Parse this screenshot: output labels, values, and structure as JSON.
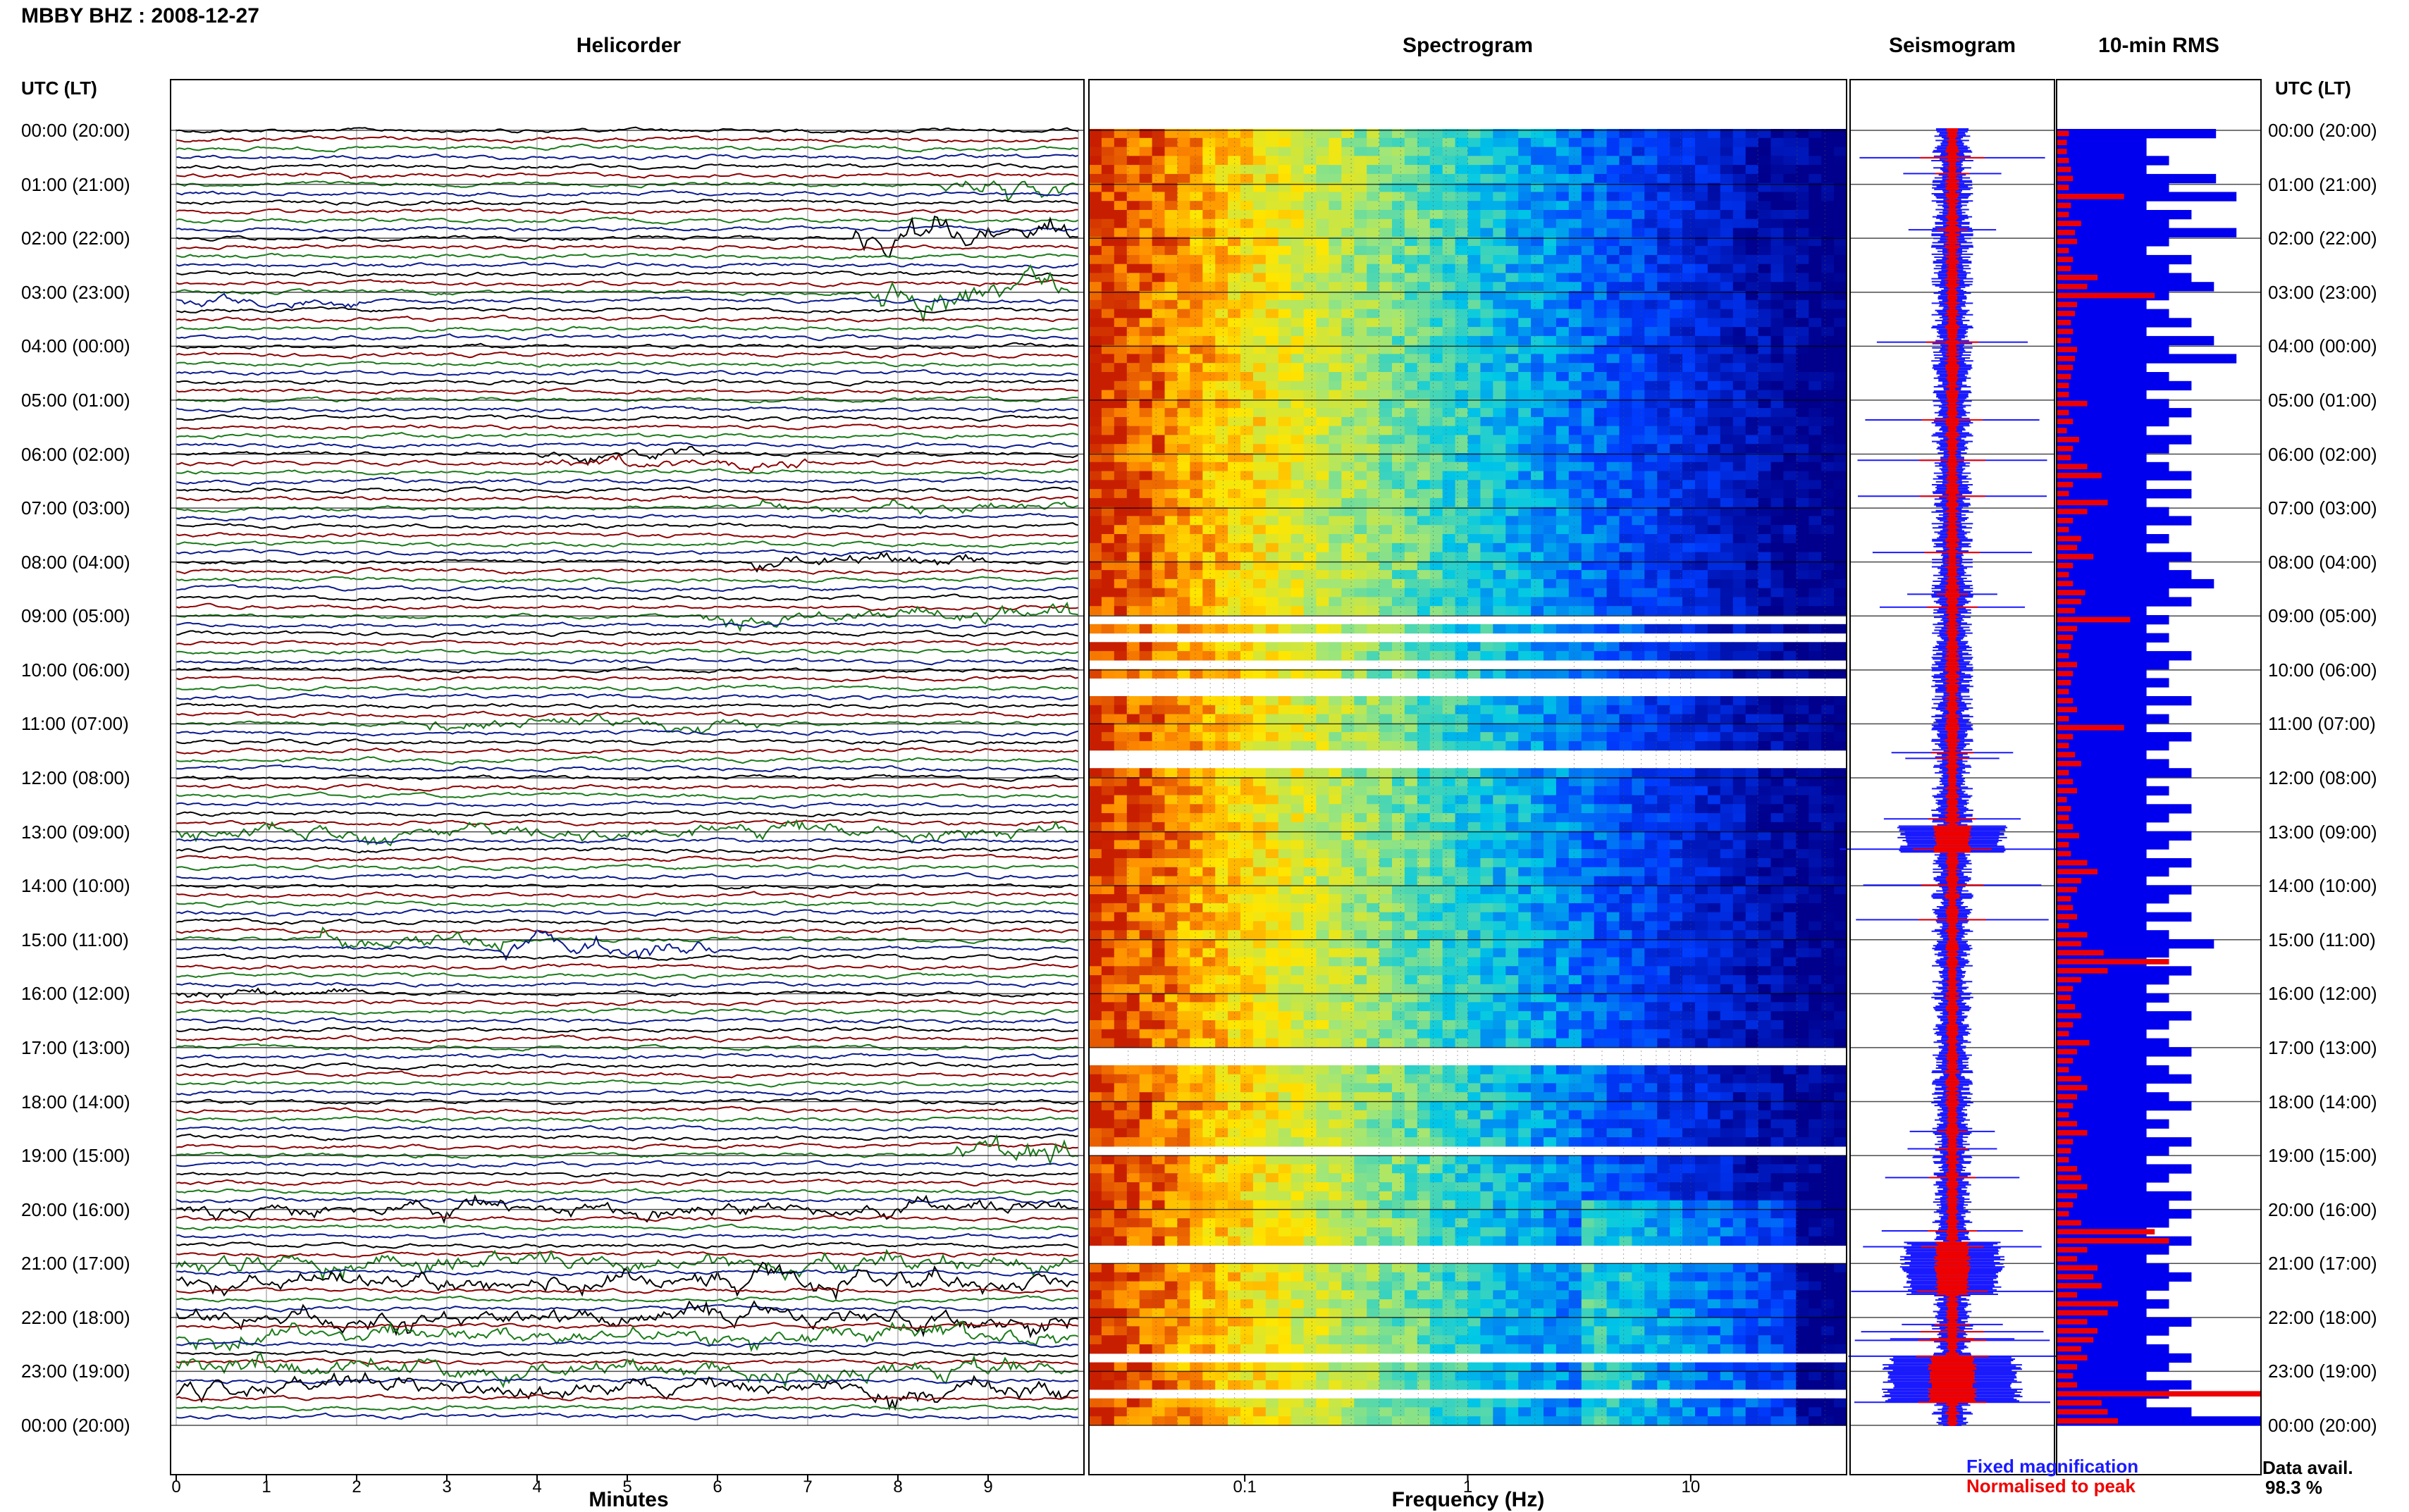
{
  "header": {
    "title": "MBBY BHZ : 2008-12-27"
  },
  "panels": {
    "helicorder": "Helicorder",
    "spectrogram": "Spectrogram",
    "seismogram": "Seismogram",
    "rms": "10-min RMS"
  },
  "time_axis": {
    "header": "UTC (LT)",
    "labels": [
      "00:00 (20:00)",
      "01:00 (21:00)",
      "02:00 (22:00)",
      "03:00 (23:00)",
      "04:00 (00:00)",
      "05:00 (01:00)",
      "06:00 (02:00)",
      "07:00 (03:00)",
      "08:00 (04:00)",
      "09:00 (05:00)",
      "10:00 (06:00)",
      "11:00 (07:00)",
      "12:00 (08:00)",
      "13:00 (09:00)",
      "14:00 (10:00)",
      "15:00 (11:00)",
      "16:00 (12:00)",
      "17:00 (13:00)",
      "18:00 (14:00)",
      "19:00 (15:00)",
      "20:00 (16:00)",
      "21:00 (17:00)",
      "22:00 (18:00)",
      "23:00 (19:00)",
      "00:00 (20:00)"
    ]
  },
  "x_axes": {
    "helicorder_label": "Minutes",
    "helicorder_ticks": [
      "0",
      "1",
      "2",
      "3",
      "4",
      "5",
      "6",
      "7",
      "8",
      "9"
    ],
    "spectrogram_label": "Frequency (Hz)",
    "spectrogram_ticks": [
      "0.1",
      "1",
      "10"
    ]
  },
  "legend": {
    "fixed": "Fixed magnification",
    "normalised": "Normalised to peak",
    "fixed_color": "#1a1aff",
    "normalised_color": "#ee0000"
  },
  "availability": {
    "label": "Data avail.",
    "value": "98.3 %"
  },
  "colors": {
    "trace_cycle": [
      "#000000",
      "#8b0000",
      "#1a7a1a",
      "#0a1a8c"
    ],
    "rms_fixed": "#0000ee",
    "rms_normalised": "#ee0000"
  },
  "chart_data": {
    "type": "heatmap",
    "title": "MBBY BHZ : 2008-12-27",
    "panels": [
      "Helicorder",
      "Spectrogram",
      "Seismogram",
      "10-min RMS"
    ],
    "helicorder": {
      "xlabel": "Minutes",
      "xlim": [
        0,
        10
      ],
      "rows_per_hour": 6,
      "hours": 24
    },
    "spectrogram": {
      "xlabel": "Frequency (Hz)",
      "xscale": "log",
      "xlim": [
        0.02,
        50
      ]
    },
    "rms_10min_fixed": [
      0.78,
      0.44,
      0.44,
      0.55,
      0.44,
      0.78,
      0.55,
      0.88,
      0.44,
      0.66,
      0.55,
      0.88,
      0.55,
      0.44,
      0.66,
      0.55,
      0.66,
      0.77,
      0.55,
      0.44,
      0.55,
      0.66,
      0.44,
      0.77,
      0.55,
      0.88,
      0.44,
      0.55,
      0.66,
      0.44,
      0.55,
      0.66,
      0.55,
      0.44,
      0.66,
      0.55,
      0.44,
      0.55,
      0.66,
      0.44,
      0.66,
      0.44,
      0.55,
      0.66,
      0.44,
      0.55,
      0.44,
      0.66,
      0.55,
      0.66,
      0.77,
      0.55,
      0.66,
      0.44,
      0.55,
      0.44,
      0.55,
      0.44,
      0.66,
      0.55,
      0.44,
      0.55,
      0.44,
      0.66,
      0.44,
      0.55,
      0.44,
      0.66,
      0.55,
      0.44,
      0.55,
      0.66,
      0.44,
      0.55,
      0.44,
      0.66,
      0.55,
      0.44,
      0.66,
      0.55,
      0.44,
      0.66,
      0.55,
      0.44,
      0.66,
      0.55,
      0.44,
      0.66,
      0.44,
      0.55,
      0.77,
      0.55,
      0.44,
      0.66,
      0.55,
      0.44,
      0.55,
      0.44,
      0.66,
      0.55,
      0.44,
      0.55,
      0.66,
      0.44,
      0.55,
      0.66,
      0.44,
      0.55,
      0.66,
      0.44,
      0.55,
      0.44,
      0.66,
      0.55,
      0.44,
      0.66,
      0.55,
      0.44,
      0.66,
      0.55,
      0.66,
      0.55,
      0.44,
      0.66,
      0.55,
      0.44,
      0.55,
      0.66,
      0.55,
      0.44,
      0.55,
      0.44,
      0.66,
      0.55,
      0.44,
      0.55,
      0.66,
      0.55,
      0.44,
      0.66,
      0.55,
      0.44,
      0.66,
      1.0
    ],
    "rms_10min_normalised": [
      0.06,
      0.05,
      0.05,
      0.06,
      0.07,
      0.08,
      0.06,
      0.33,
      0.07,
      0.06,
      0.12,
      0.09,
      0.1,
      0.06,
      0.08,
      0.07,
      0.2,
      0.15,
      0.48,
      0.1,
      0.09,
      0.07,
      0.08,
      0.07,
      0.1,
      0.09,
      0.08,
      0.07,
      0.06,
      0.06,
      0.15,
      0.06,
      0.08,
      0.05,
      0.11,
      0.08,
      0.07,
      0.15,
      0.22,
      0.08,
      0.06,
      0.25,
      0.15,
      0.08,
      0.06,
      0.12,
      0.1,
      0.18,
      0.08,
      0.06,
      0.08,
      0.14,
      0.12,
      0.09,
      0.36,
      0.1,
      0.08,
      0.07,
      0.06,
      0.1,
      0.08,
      0.07,
      0.06,
      0.08,
      0.1,
      0.06,
      0.33,
      0.08,
      0.06,
      0.09,
      0.12,
      0.06,
      0.08,
      0.1,
      0.05,
      0.07,
      0.06,
      0.08,
      0.11,
      0.06,
      0.07,
      0.15,
      0.2,
      0.12,
      0.1,
      0.07,
      0.08,
      0.1,
      0.06,
      0.15,
      0.12,
      0.23,
      0.55,
      0.25,
      0.12,
      0.08,
      0.07,
      0.09,
      0.12,
      0.08,
      0.06,
      0.16,
      0.1,
      0.08,
      0.06,
      0.12,
      0.15,
      0.1,
      0.08,
      0.06,
      0.1,
      0.15,
      0.08,
      0.07,
      0.06,
      0.1,
      0.12,
      0.15,
      0.1,
      0.08,
      0.06,
      0.12,
      0.48,
      0.55,
      0.15,
      0.1,
      0.2,
      0.18,
      0.22,
      0.1,
      0.3,
      0.25,
      0.15,
      0.2,
      0.18,
      0.12,
      0.15,
      0.1,
      0.08,
      0.1,
      1.0,
      0.22,
      0.25,
      0.3
    ]
  }
}
